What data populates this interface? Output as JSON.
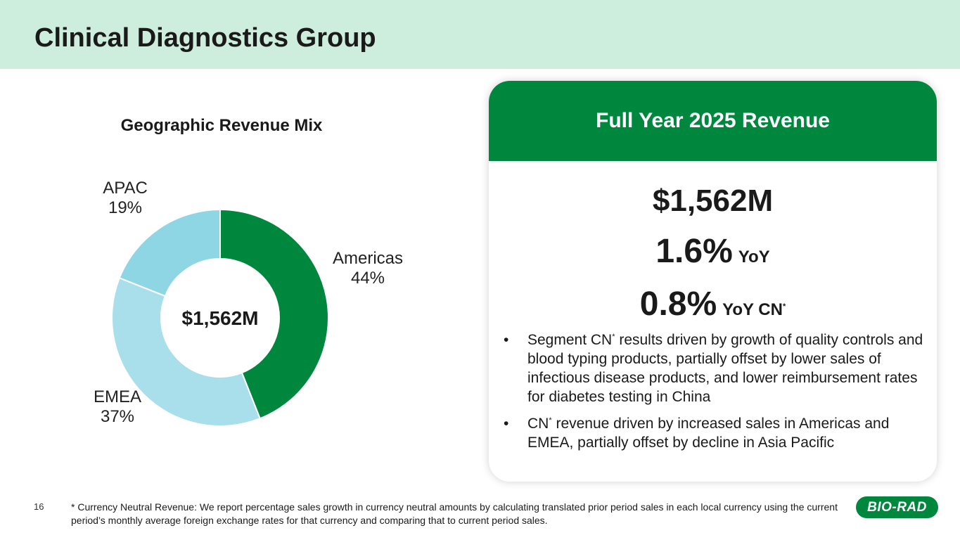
{
  "title": "Clinical Diagnostics Group",
  "chart_data": {
    "type": "pie",
    "variant": "donut",
    "title": "Geographic Revenue Mix",
    "center_label": "$1,562M",
    "slices": [
      {
        "name": "Americas",
        "value": 44,
        "label": "44%",
        "color": "#00873e"
      },
      {
        "name": "EMEA",
        "value": 37,
        "label": "37%",
        "color": "#a8dfeb"
      },
      {
        "name": "APAC",
        "value": 19,
        "label": "19%",
        "color": "#8fd6e4"
      }
    ]
  },
  "card": {
    "heading": "Full Year 2025 Revenue",
    "total": "$1,562M",
    "yoy_value": "1.6%",
    "yoy_label": "YoY",
    "cn_value": "0.8%",
    "cn_label": "YoY CN",
    "asterisk": "*",
    "bullets": [
      {
        "lead": "Segment CN",
        "text": " results driven by growth of quality controls and blood typing products, partially offset by lower sales of infectious disease products, and lower reimbursement rates for diabetes testing in China"
      },
      {
        "lead": "CN",
        "text": " revenue driven by increased sales in Americas and EMEA, partially offset by decline in Asia Pacific"
      }
    ]
  },
  "footer": {
    "page_number": "16",
    "footnote": "* Currency Neutral Revenue: We report percentage sales growth in currency neutral amounts by calculating translated prior period sales in each local currency using the current period’s monthly average foreign exchange rates for that currency and comparing that to current period sales.",
    "logo_text": "BIO-RAD"
  },
  "colors": {
    "header_bg": "#cdeddd",
    "accent_green": "#00873e"
  }
}
